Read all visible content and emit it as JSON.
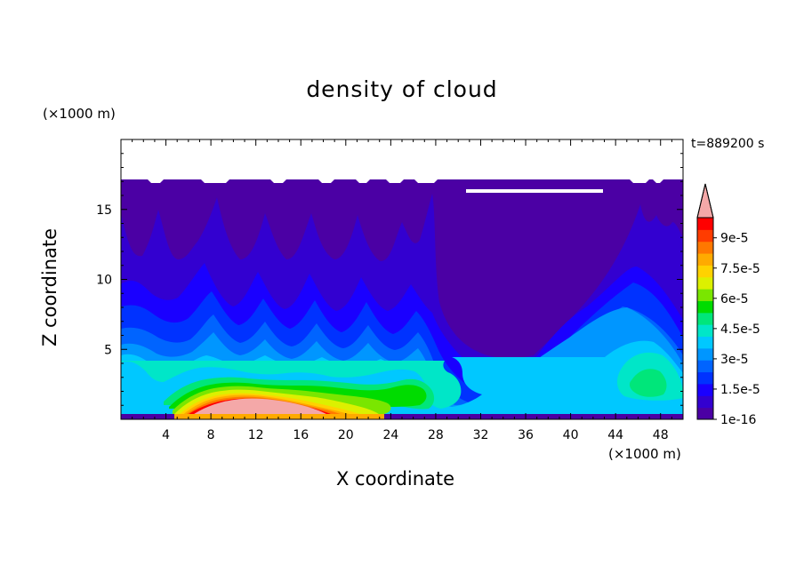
{
  "chart_data": {
    "type": "heatmap",
    "title": "density of cloud",
    "xlabel": "X coordinate",
    "ylabel": "Z coordinate",
    "x_unit": "(×1000 m)",
    "y_unit": "(×1000 m)",
    "time_label": "t=889200 s",
    "xlim": [
      0,
      50
    ],
    "ylim": [
      0,
      20
    ],
    "x_ticks": [
      4,
      8,
      12,
      16,
      20,
      24,
      28,
      32,
      36,
      40,
      44,
      48
    ],
    "y_ticks": [
      5,
      10,
      15
    ],
    "colorbar": {
      "labels": [
        "9e-5",
        "7.5e-5",
        "6e-5",
        "4.5e-5",
        "3e-5",
        "1.5e-5",
        "1e-16"
      ],
      "label_values": [
        9e-05,
        7.5e-05,
        6e-05,
        4.5e-05,
        3e-05,
        1.5e-05,
        1e-16
      ],
      "colors": [
        "#4b00a4",
        "#3300d0",
        "#1a00ff",
        "#0032ff",
        "#0064ff",
        "#0096ff",
        "#00c8ff",
        "#00e6c8",
        "#00e67a",
        "#00dc00",
        "#7ae600",
        "#dcf000",
        "#ffd200",
        "#ffaa00",
        "#ff7800",
        "#ff3c00",
        "#ff0000"
      ],
      "over_color": "#f4a8a8",
      "extend": "max"
    },
    "summary": "Cloud density concentrated near the surface between x≈5 and x≈28 (×1000 m), max exceeding 9e-5 around x≈8–20, z<2.5 (×1000 m); secondary maximum near x≈46, z≈3; cloud top near z≈17 (×1000 m)."
  }
}
